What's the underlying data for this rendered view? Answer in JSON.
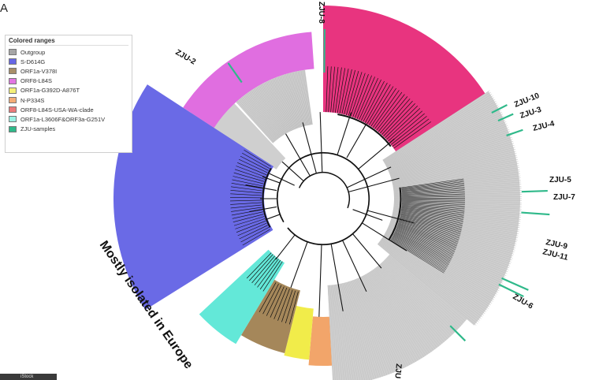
{
  "panel_letter": "A",
  "legend": {
    "title": "Colored ranges",
    "items": [
      {
        "label": "Outgroup",
        "color": "#a6a6a6"
      },
      {
        "label": "S-D614G",
        "color": "#6767e6"
      },
      {
        "label": "ORF1a-V378I",
        "color": "#a88f6a"
      },
      {
        "label": "ORF8-L84S",
        "color": "#e276e2"
      },
      {
        "label": "ORF1a-G392D-A876T",
        "color": "#f4f079"
      },
      {
        "label": "N-P334S",
        "color": "#f4ad78"
      },
      {
        "label": "ORF8-L84S-USA-WA-clade",
        "color": "#ec7a7a"
      },
      {
        "label": "ORF1a-L3606F&ORF3a-G251V",
        "color": "#9af2e4"
      },
      {
        "label": "ZJU-samples",
        "color": "#2fb98a"
      }
    ]
  },
  "colors": {
    "pink": "#e8347f",
    "magenta": "#e06ee0",
    "blue": "#6a6ae6",
    "cyan": "#63e8d8",
    "brown": "#a5875a",
    "yellow": "#f1ec4a",
    "orange": "#f2a56a",
    "gray": "#cfcfcf",
    "zju": "#2fb98a"
  },
  "arc_label": "Mostly isolated in Europe",
  "zju_labels": [
    {
      "id": "zju-8",
      "text": "ZJU-8"
    },
    {
      "id": "zju-2",
      "text": "ZJU-2"
    },
    {
      "id": "zju-10",
      "text": "ZJU-10"
    },
    {
      "id": "zju-3",
      "text": "ZJU-3"
    },
    {
      "id": "zju-4",
      "text": "ZJU-4"
    },
    {
      "id": "zju-5",
      "text": "ZJU-5"
    },
    {
      "id": "zju-7",
      "text": "ZJU-7"
    },
    {
      "id": "zju-9",
      "text": "ZJU-9"
    },
    {
      "id": "zju-11",
      "text": "ZJU-11"
    },
    {
      "id": "zju-6",
      "text": "ZJU-6"
    },
    {
      "id": "zju-1",
      "text": "ZJU"
    }
  ],
  "bottom_tag": "iStock"
}
